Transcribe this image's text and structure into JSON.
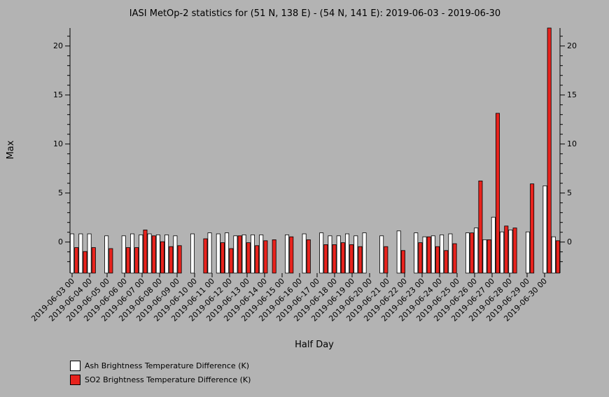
{
  "chart_data": {
    "type": "bar",
    "title": "IASI MetOp-2 statistics for (51 N, 138 E) - (54 N, 141 E): 2019-06-03 - 2019-06-30",
    "xlabel": "Half Day",
    "ylabel": "Max",
    "ylim": [
      -3.2,
      21.8
    ],
    "yticks": [
      0,
      5,
      10,
      15,
      20
    ],
    "grid": false,
    "x_tick_labels": [
      "2019-06-03 00",
      "2019-06-04 00",
      "2019-06-05 00",
      "2019-06-06 00",
      "2019-06-07 00",
      "2019-06-08 00",
      "2019-06-09 00",
      "2019-06-10 00",
      "2019-06-11 00",
      "2019-06-12 00",
      "2019-06-13 00",
      "2019-06-14 00",
      "2019-06-15 00",
      "2019-06-16 00",
      "2019-06-17 00",
      "2019-06-18 00",
      "2019-06-19 00",
      "2019-06-20 00",
      "2019-06-21 00",
      "2019-06-22 00",
      "2019-06-23 00",
      "2019-06-24 00",
      "2019-06-25 00",
      "2019-06-26 00",
      "2019-06-27 00",
      "2019-06-28 00",
      "2019-06-29 00",
      "2019-06-30 00"
    ],
    "series": [
      {
        "name": "Ash Brightness Temperature Difference (K)",
        "color": "#ffffff",
        "values": [
          0.8,
          0.8,
          0.8,
          null,
          0.6,
          null,
          0.6,
          0.8,
          0.7,
          0.8,
          0.7,
          0.7,
          0.6,
          null,
          0.8,
          null,
          0.9,
          0.8,
          0.9,
          0.6,
          0.7,
          0.7,
          0.7,
          null,
          null,
          0.7,
          null,
          0.8,
          null,
          0.9,
          0.6,
          0.6,
          0.8,
          0.6,
          0.9,
          null,
          0.6,
          null,
          1.1,
          null,
          0.9,
          0.5,
          0.6,
          0.7,
          0.8,
          null,
          0.9,
          1.4,
          0.2,
          2.5,
          1.0,
          1.2,
          null,
          1.0,
          null,
          5.7,
          0.5
        ]
      },
      {
        "name": "SO2 Brightness Temperature Difference (K)",
        "color": "#e8231d",
        "values": [
          -0.6,
          -1.0,
          -0.6,
          null,
          -0.7,
          null,
          -0.6,
          -0.6,
          1.2,
          0.6,
          0.0,
          -0.5,
          -0.4,
          null,
          null,
          0.3,
          null,
          -0.1,
          -0.7,
          0.6,
          -0.1,
          -0.4,
          0.1,
          0.2,
          null,
          0.5,
          null,
          0.2,
          null,
          -0.3,
          -0.3,
          -0.1,
          -0.3,
          -0.5,
          null,
          null,
          -0.5,
          null,
          -0.9,
          null,
          -0.1,
          0.5,
          -0.5,
          -0.9,
          -0.2,
          null,
          0.9,
          6.2,
          0.2,
          13.1,
          1.6,
          1.4,
          null,
          5.9,
          null,
          21.8,
          0.1
        ]
      }
    ],
    "legend_placement": "bottom-left"
  }
}
